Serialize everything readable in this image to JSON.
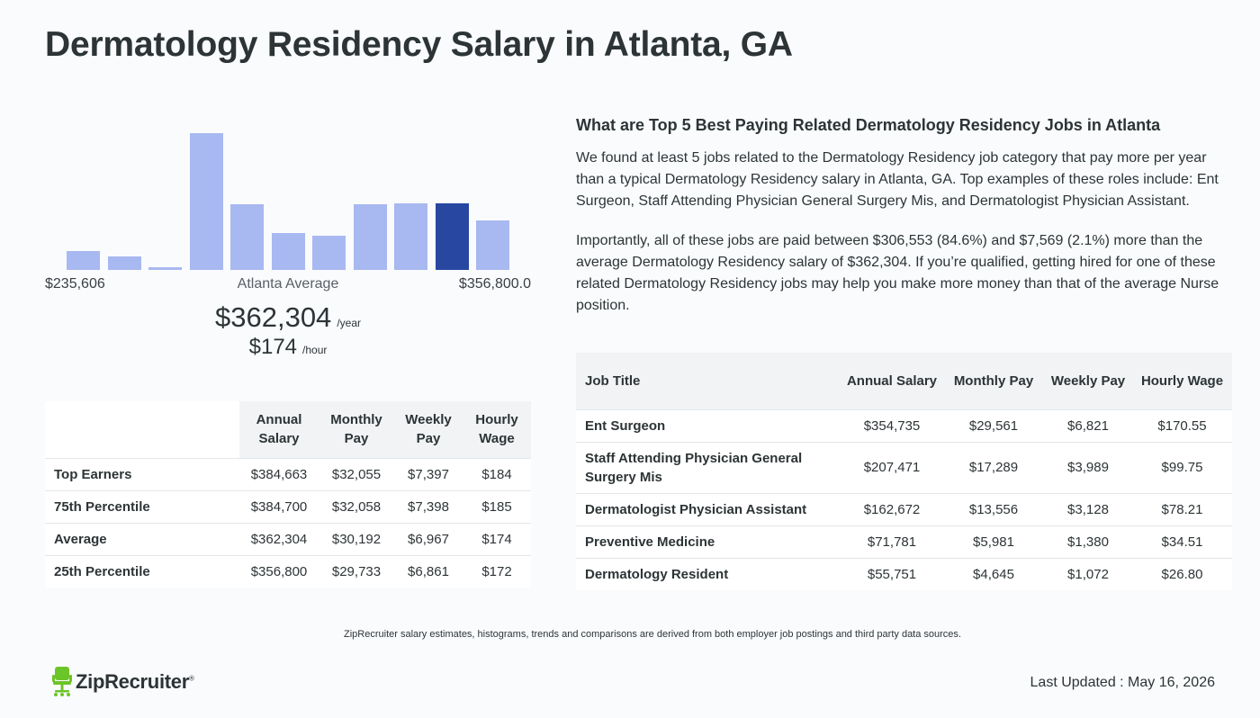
{
  "page": {
    "title": "Dermatology Residency Salary in Atlanta, GA"
  },
  "histogram": {
    "min_label": "$235,606",
    "mid_label": "Atlanta Average",
    "max_label": "$356,800.0",
    "bar_levels": [
      0.14,
      0.1,
      0.02,
      1.0,
      0.48,
      0.27,
      0.25,
      0.48,
      0.49,
      0.49,
      0.36
    ],
    "active_index": 9,
    "bar_color": "#a8b8f0",
    "active_color": "#2847a0"
  },
  "average": {
    "yearly": "$362,304",
    "yearly_unit": "/year",
    "hourly": "$174",
    "hourly_unit": "/hour"
  },
  "percentile_table": {
    "headers": [
      "Annual Salary",
      "Monthly Pay",
      "Weekly Pay",
      "Hourly Wage"
    ],
    "rows": [
      {
        "label": "Top Earners",
        "annual": "$384,663",
        "monthly": "$32,055",
        "weekly": "$7,397",
        "hourly": "$184"
      },
      {
        "label": "75th Percentile",
        "annual": "$384,700",
        "monthly": "$32,058",
        "weekly": "$7,398",
        "hourly": "$185"
      },
      {
        "label": "Average",
        "annual": "$362,304",
        "monthly": "$30,192",
        "weekly": "$6,967",
        "hourly": "$174"
      },
      {
        "label": "25th Percentile",
        "annual": "$356,800",
        "monthly": "$29,733",
        "weekly": "$6,861",
        "hourly": "$172"
      }
    ]
  },
  "related": {
    "heading": "What are Top 5 Best Paying Related Dermatology Residency Jobs in Atlanta",
    "paragraph1": "We found at least 5 jobs related to the Dermatology Residency job category that pay more per year than a typical Dermatology Residency salary in Atlanta, GA. Top examples of these roles include: Ent Surgeon, Staff Attending Physician General Surgery Mis, and Dermatologist Physician Assistant.",
    "paragraph2": "Importantly, all of these jobs are paid between $306,553 (84.6%) and $7,569 (2.1%) more than the average Dermatology Residency salary of $362,304. If you’re qualified, getting hired for one of these related Dermatology Residency jobs may help you make more money than that of the average Nurse position."
  },
  "jobs_table": {
    "headers": [
      "Job Title",
      "Annual Salary",
      "Monthly Pay",
      "Weekly Pay",
      "Hourly Wage"
    ],
    "rows": [
      {
        "title": "Ent Surgeon",
        "annual": "$354,735",
        "monthly": "$29,561",
        "weekly": "$6,821",
        "hourly": "$170.55"
      },
      {
        "title": "Staff Attending Physician General Surgery Mis",
        "annual": "$207,471",
        "monthly": "$17,289",
        "weekly": "$3,989",
        "hourly": "$99.75"
      },
      {
        "title": "Dermatologist Physician Assistant",
        "annual": "$162,672",
        "monthly": "$13,556",
        "weekly": "$3,128",
        "hourly": "$78.21"
      },
      {
        "title": "Preventive Medicine",
        "annual": "$71,781",
        "monthly": "$5,981",
        "weekly": "$1,380",
        "hourly": "$34.51"
      },
      {
        "title": "Dermatology Resident",
        "annual": "$55,751",
        "monthly": "$4,645",
        "weekly": "$1,072",
        "hourly": "$26.80"
      }
    ]
  },
  "footer": {
    "note": "ZipRecruiter salary estimates, histograms, trends and comparisons are derived from both employer job postings and third party data sources.",
    "logo_text": "ZipRecruiter",
    "logo_reg": "®",
    "logo_icon": "chair-icon",
    "logo_color": "#6cc528",
    "updated": "Last Updated : May 16, 2026"
  }
}
